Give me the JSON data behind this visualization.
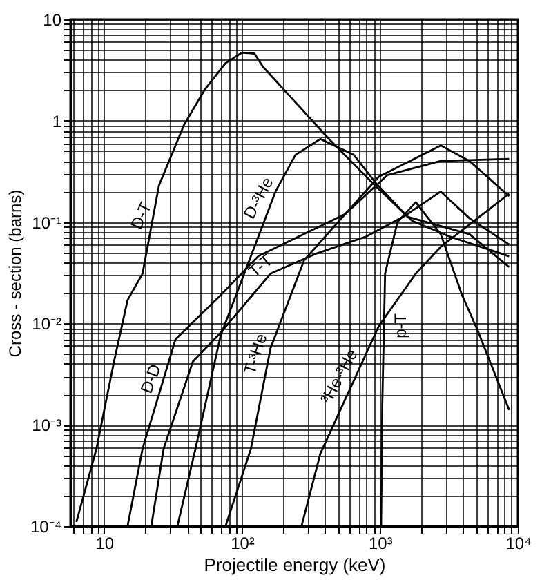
{
  "chart_data": {
    "type": "line",
    "xlabel": "Projectile energy (keV)",
    "ylabel": "Cross - section (barns)",
    "log": "xy",
    "grid": true,
    "marker": "none",
    "line_style": "solid",
    "xlim": [
      5.7,
      10000
    ],
    "ylim": [
      0.0001,
      10
    ],
    "xticks": [
      {
        "value": 6,
        "label": null
      },
      {
        "value": 7,
        "label": null
      },
      {
        "value": 8,
        "label": null
      },
      {
        "value": 9,
        "label": null
      },
      10,
      {
        "value": 20,
        "label": null
      },
      {
        "value": 30,
        "label": null
      },
      {
        "value": 40,
        "label": null
      },
      {
        "value": 50,
        "label": null
      },
      {
        "value": 60,
        "label": null
      },
      {
        "value": 70,
        "label": null
      },
      {
        "value": 80,
        "label": null
      },
      {
        "value": 90,
        "label": null
      },
      {
        "value": 100,
        "label": "10²"
      },
      {
        "value": 200,
        "label": null
      },
      {
        "value": 300,
        "label": null
      },
      {
        "value": 400,
        "label": null
      },
      {
        "value": 500,
        "label": null
      },
      {
        "value": 600,
        "label": null
      },
      {
        "value": 700,
        "label": null
      },
      {
        "value": 800,
        "label": null
      },
      {
        "value": 900,
        "label": null
      },
      {
        "value": 1000,
        "label": "10³"
      },
      {
        "value": 2000,
        "label": null
      },
      {
        "value": 3000,
        "label": null
      },
      {
        "value": 4000,
        "label": null
      },
      {
        "value": 5000,
        "label": null
      },
      {
        "value": 6000,
        "label": null
      },
      {
        "value": 7000,
        "label": null
      },
      {
        "value": 8000,
        "label": null
      },
      {
        "value": 9000,
        "label": null
      },
      {
        "value": 10000,
        "label": "10⁴"
      }
    ],
    "yticks": [
      {
        "value": 0.0001,
        "label": "10⁻⁴"
      },
      {
        "value": 0.0002,
        "label": null
      },
      {
        "value": 0.0003,
        "label": null
      },
      {
        "value": 0.0004,
        "label": null
      },
      {
        "value": 0.0005,
        "label": null
      },
      {
        "value": 0.0006,
        "label": null
      },
      {
        "value": 0.0007,
        "label": null
      },
      {
        "value": 0.0008,
        "label": null
      },
      {
        "value": 0.0009,
        "label": null
      },
      {
        "value": 0.001,
        "label": "10⁻³"
      },
      {
        "value": 0.002,
        "label": null
      },
      {
        "value": 0.003,
        "label": null
      },
      {
        "value": 0.004,
        "label": null
      },
      {
        "value": 0.005,
        "label": null
      },
      {
        "value": 0.006,
        "label": null
      },
      {
        "value": 0.007,
        "label": null
      },
      {
        "value": 0.008,
        "label": null
      },
      {
        "value": 0.009,
        "label": null
      },
      {
        "value": 0.01,
        "label": "10⁻²"
      },
      {
        "value": 0.02,
        "label": null
      },
      {
        "value": 0.03,
        "label": null
      },
      {
        "value": 0.04,
        "label": null
      },
      {
        "value": 0.05,
        "label": null
      },
      {
        "value": 0.06,
        "label": null
      },
      {
        "value": 0.07,
        "label": null
      },
      {
        "value": 0.08,
        "label": null
      },
      {
        "value": 0.09,
        "label": null
      },
      {
        "value": 0.1,
        "label": "10⁻¹"
      },
      {
        "value": 0.2,
        "label": null
      },
      {
        "value": 0.3,
        "label": null
      },
      {
        "value": 0.4,
        "label": null
      },
      {
        "value": 0.5,
        "label": null
      },
      {
        "value": 0.6,
        "label": null
      },
      {
        "value": 0.7,
        "label": null
      },
      {
        "value": 0.8,
        "label": null
      },
      {
        "value": 0.9,
        "label": null
      },
      1,
      {
        "value": 2,
        "label": null
      },
      {
        "value": 3,
        "label": null
      },
      {
        "value": 4,
        "label": null
      },
      {
        "value": 5,
        "label": null
      },
      {
        "value": 6,
        "label": null
      },
      {
        "value": 7,
        "label": null
      },
      {
        "value": 8,
        "label": null
      },
      {
        "value": 9,
        "label": null
      },
      10
    ],
    "series": [
      {
        "name": "D-T",
        "color": "#000000",
        "x": [
          6.3,
          8.8,
          11.8,
          14.8,
          19,
          25,
          38,
          54,
          76,
          100,
          123,
          142,
          244,
          427,
          920,
          1710,
          3200,
          8650
        ],
        "values": [
          0.00011,
          0.00058,
          0.0042,
          0.017,
          0.031,
          0.23,
          0.91,
          2.05,
          3.7,
          4.7,
          4.6,
          3.4,
          1.52,
          0.66,
          0.23,
          0.103,
          0.072,
          0.046
        ]
      },
      {
        "name": "D-³He",
        "color": "#000000",
        "x": [
          34,
          46,
          70,
          116,
          175,
          244,
          370,
          647,
          940,
          1580,
          4460,
          8650
        ],
        "values": [
          0.0001,
          0.00058,
          0.0076,
          0.046,
          0.2,
          0.46,
          0.66,
          0.46,
          0.24,
          0.113,
          0.076,
          0.036
        ]
      },
      {
        "name": "T-T",
        "color": "#000000",
        "x": [
          22,
          27,
          44,
          70,
          161,
          348,
          796,
          1480,
          2760,
          4460,
          8650
        ],
        "values": [
          0.0001,
          0.00058,
          0.0042,
          0.0081,
          0.031,
          0.049,
          0.072,
          0.113,
          0.2,
          0.109,
          0.06
        ]
      },
      {
        "name": "D-D",
        "color": "#000000",
        "x": [
          14.8,
          19,
          33,
          70,
          131,
          560,
          1130,
          2760,
          8650
        ],
        "values": [
          0.0001,
          0.00058,
          0.007,
          0.019,
          0.046,
          0.12,
          0.29,
          0.4,
          0.42
        ]
      },
      {
        "name": "T-³He",
        "color": "#000000",
        "x": [
          76,
          116,
          161,
          282,
          560,
          980,
          2760,
          4460,
          8650
        ],
        "values": [
          0.0001,
          0.00058,
          0.0057,
          0.042,
          0.12,
          0.28,
          0.57,
          0.4,
          0.18
        ]
      },
      {
        "name": "³He-³He",
        "color": "#000000",
        "x": [
          270,
          370,
          980,
          1820,
          2760,
          8650
        ],
        "values": [
          0.0001,
          0.00052,
          0.0094,
          0.031,
          0.057,
          0.19
        ]
      },
      {
        "name": "p-T",
        "color": "#000000",
        "x": [
          1020,
          1040,
          1090,
          1340,
          1820,
          2760,
          3940,
          5100,
          8650
        ],
        "values": [
          0.0001,
          0.0016,
          0.031,
          0.1,
          0.157,
          0.076,
          0.019,
          0.0086,
          0.0014
        ]
      }
    ]
  }
}
